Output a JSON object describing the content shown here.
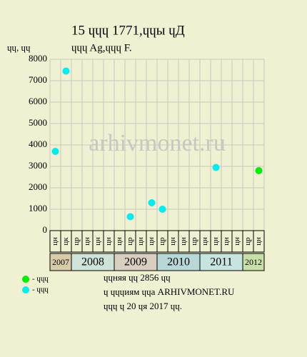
{
  "chart_data": {
    "type": "scatter",
    "title": "15 ɥɥɥ 1771,ɥɥы ɥД",
    "subtitle": "ɥɥɥ Ag,ɥɥɥ F.",
    "y_label": "ɥɥ, ɥɥ",
    "watermark": "arhivmonet.ru",
    "categories": [
      "цн",
      "цк",
      "цр",
      "цн",
      "цн",
      "цн",
      "цн",
      "цр",
      "цн",
      "цн",
      "цр",
      "цн",
      "цн",
      "цр",
      "цн",
      "цн",
      "цн",
      "цн",
      "цр",
      "цн"
    ],
    "years": [
      "2007",
      "2008",
      "2009",
      "2010",
      "2011",
      "2012"
    ],
    "series": [
      {
        "name": "- ɥɥɥ",
        "color": "#00ee00",
        "values": [
          null,
          null,
          null,
          null,
          null,
          null,
          null,
          null,
          null,
          null,
          null,
          null,
          null,
          null,
          null,
          null,
          null,
          null,
          null,
          2800
        ]
      },
      {
        "name": "- ɥɥɥ",
        "color": "#00eeee",
        "values": [
          3700,
          7450,
          null,
          null,
          null,
          null,
          null,
          650,
          null,
          1300,
          1000,
          null,
          null,
          null,
          null,
          2950,
          null,
          null,
          null,
          null
        ]
      }
    ],
    "ylim": [
      0,
      8000
    ],
    "yticks": [
      0,
      1000,
      2000,
      3000,
      4000,
      5000,
      6000,
      7000,
      8000
    ],
    "grid": true,
    "notes": [
      "ɥɥняя ɥɥ 2856 ɥɥ",
      "ɥ ɥɥɥиям ɥɥа ARHIVMONET.RU",
      "ɥɥɥ ɥ 20 ɥя 2017 ɥɥ."
    ]
  }
}
